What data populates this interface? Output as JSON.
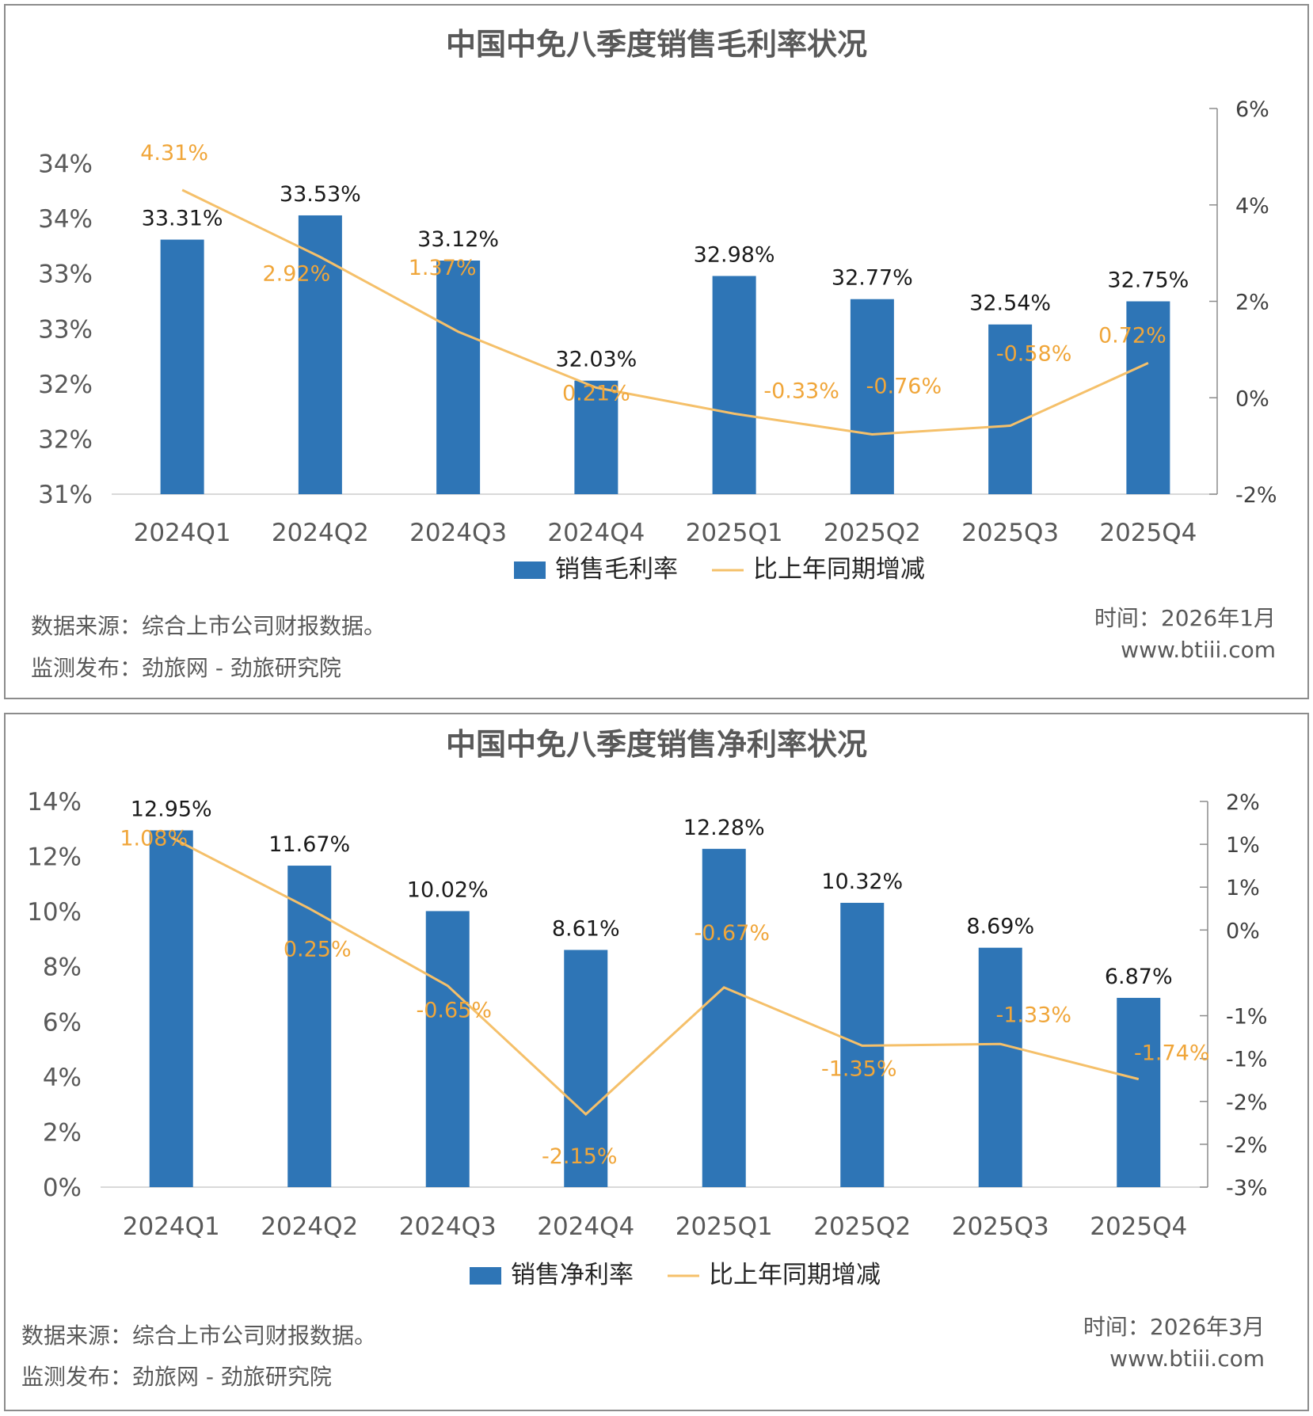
{
  "chart_data": [
    {
      "type": "bar",
      "title": "中国中免八季度销售毛利率状况",
      "categories": [
        "2024Q1",
        "2024Q2",
        "2024Q3",
        "2024Q4",
        "2025Q1",
        "2025Q2",
        "2025Q3",
        "2025Q4"
      ],
      "series": [
        {
          "name": "销售毛利率",
          "type": "bar",
          "axis": "left",
          "color": "#2e75b6",
          "values": [
            33.31,
            33.53,
            33.12,
            32.03,
            32.98,
            32.77,
            32.54,
            32.75
          ],
          "labels": [
            "33.31%",
            "33.53%",
            "33.12%",
            "32.03%",
            "32.98%",
            "32.77%",
            "32.54%",
            "32.75%"
          ]
        },
        {
          "name": "比上年同期增减",
          "type": "line",
          "axis": "right",
          "color": "#f5c06a",
          "values": [
            4.31,
            2.92,
            1.37,
            0.21,
            -0.33,
            -0.76,
            -0.58,
            0.72
          ],
          "labels": [
            "4.31%",
            "2.92%",
            "1.37%",
            "0.21%",
            "-0.33%",
            "-0.76%",
            "-0.58%",
            "0.72%"
          ]
        }
      ],
      "ylim": [
        31,
        34.5
      ],
      "yticks": [
        31,
        31.5,
        32,
        32.5,
        33,
        33.5,
        34
      ],
      "ytick_labels": [
        "31%",
        "32%",
        "32%",
        "33%",
        "33%",
        "34%",
        "34%"
      ],
      "y2lim": [
        -2,
        6
      ],
      "y2ticks": [
        -2,
        0,
        2,
        4,
        6
      ],
      "y2tick_labels": [
        "-2%",
        "0%",
        "2%",
        "4%",
        "6%"
      ],
      "legend": "bottom",
      "grid": false,
      "source_text": "数据来源：综合上市公司财报数据。",
      "publisher_text": "监测发布：劲旅网 - 劲旅研究院",
      "time_text": "时间：2026年1月",
      "website_text": "www.btiii.com"
    },
    {
      "type": "bar",
      "title": "中国中免八季度销售净利率状况",
      "categories": [
        "2024Q1",
        "2024Q2",
        "2024Q3",
        "2024Q4",
        "2025Q1",
        "2025Q2",
        "2025Q3",
        "2025Q4"
      ],
      "series": [
        {
          "name": "销售净利率",
          "type": "bar",
          "axis": "left",
          "color": "#2e75b6",
          "values": [
            12.95,
            11.67,
            10.02,
            8.61,
            12.28,
            10.32,
            8.69,
            6.87
          ],
          "labels": [
            "12.95%",
            "11.67%",
            "10.02%",
            "8.61%",
            "12.28%",
            "10.32%",
            "8.69%",
            "6.87%"
          ]
        },
        {
          "name": "比上年同期增减",
          "type": "line",
          "axis": "right",
          "color": "#f5c06a",
          "values": [
            1.08,
            0.25,
            -0.65,
            -2.15,
            -0.67,
            -1.35,
            -1.33,
            -1.74
          ],
          "labels": [
            "1.08%",
            "0.25%",
            "-0.65%",
            "-2.15%",
            "-0.67%",
            "-1.35%",
            "-1.33%",
            "-1.74%"
          ]
        }
      ],
      "ylim": [
        0,
        14
      ],
      "yticks": [
        0,
        2,
        4,
        6,
        8,
        10,
        12,
        14
      ],
      "ytick_labels": [
        "0%",
        "2%",
        "4%",
        "6%",
        "8%",
        "10%",
        "12%",
        "14%"
      ],
      "y2lim": [
        -3,
        1.5
      ],
      "y2ticks": [
        -3,
        -2.5,
        -2,
        -1.5,
        -1,
        -0.5,
        0,
        0.5,
        1,
        1.5
      ],
      "y2tick_labels": [
        "-3%",
        "-2%",
        "-2%",
        "-1%",
        "-1%",
        "0%",
        "1%",
        "1%",
        "2%"
      ],
      "y2ticks_shown": [
        -3,
        -2.5,
        -2,
        -1.5,
        -1,
        0,
        0.5,
        1,
        1.5
      ],
      "legend": "bottom",
      "grid": false,
      "source_text": "数据来源：综合上市公司财报数据。",
      "publisher_text": "监测发布：劲旅网 - 劲旅研究院",
      "time_text": "时间：2026年3月",
      "website_text": "www.btiii.com"
    }
  ]
}
